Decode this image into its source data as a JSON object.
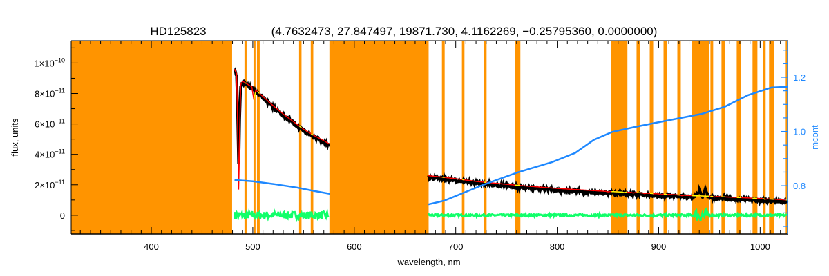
{
  "chart_data": {
    "type": "line",
    "title": {
      "star": "HD125823",
      "params": "(4.7632473, 27.847497, 19871.730, 4.1162269, −0.25795360, 0.0000000)"
    },
    "xlabel": "wavelength, nm",
    "ylabel": "flux, units",
    "y2label": "mcont",
    "xlim": [
      321,
      1027
    ],
    "ylim": [
      -1.23e-11,
      1.147e-10
    ],
    "y2lim": [
      0.622,
      1.335
    ],
    "xticks": [
      400,
      500,
      600,
      700,
      800,
      900,
      1000
    ],
    "yticks": [
      {
        "value": 0,
        "mantissa": "0",
        "exp": ""
      },
      {
        "value": 2e-11,
        "mantissa": "2×10",
        "exp": "−11"
      },
      {
        "value": 4e-11,
        "mantissa": "4×10",
        "exp": "−11"
      },
      {
        "value": 6e-11,
        "mantissa": "6×10",
        "exp": "−11"
      },
      {
        "value": 8e-11,
        "mantissa": "8×10",
        "exp": "−11"
      },
      {
        "value": 1e-10,
        "mantissa": "1×10",
        "exp": "−10"
      }
    ],
    "y2ticks": [
      0.8,
      1.0,
      1.2
    ],
    "colors": {
      "mask": "#ff9400",
      "observed": "#000000",
      "model": "#ff0000",
      "masked_model": "#ffff00",
      "residual": "#11ff6a",
      "mcont": "#1e88ff"
    },
    "masked_regions_nm": [
      [
        321,
        479.6
      ],
      [
        491.8,
        493.9
      ],
      [
        500.7,
        502.7
      ],
      [
        504.1,
        506.8
      ],
      [
        545.6,
        548.0
      ],
      [
        557.1,
        559.6
      ],
      [
        575.5,
        673.3
      ],
      [
        686.4,
        689.1
      ],
      [
        706.1,
        708.6
      ],
      [
        727.9,
        730.4
      ],
      [
        758.5,
        763.7
      ],
      [
        853.1,
        869.2
      ],
      [
        878.2,
        881.6
      ],
      [
        891.2,
        894.6
      ],
      [
        904.8,
        908.2
      ],
      [
        918.4,
        921.8
      ],
      [
        932.7,
        949.7
      ],
      [
        951.0,
        953.7
      ],
      [
        961.9,
        965.3
      ],
      [
        976.9,
        981.0
      ],
      [
        992.5,
        997.3
      ],
      [
        1002.7,
        1005.4
      ],
      [
        1008.8,
        1013.6
      ],
      [
        1025.2,
        1027
      ]
    ],
    "series": [
      {
        "name": "observed flux",
        "axis": "left",
        "segments": [
          [
            [
              482,
              9.6e-11
            ],
            [
              484,
              9.3e-11
            ],
            [
              485.3,
              6.2e-11
            ],
            [
              486.1,
              3e-11
            ],
            [
              486.9,
              6.2e-11
            ],
            [
              488,
              8.6e-11
            ],
            [
              490,
              8.8e-11
            ],
            [
              500,
              8.4e-11
            ],
            [
              510,
              7.8e-11
            ],
            [
              520,
              7.2e-11
            ],
            [
              530,
              6.65e-11
            ],
            [
              540,
              6.15e-11
            ],
            [
              550,
              5.65e-11
            ],
            [
              560,
              5.25e-11
            ],
            [
              570,
              4.9e-11
            ],
            [
              575,
              4.7e-11
            ]
          ],
          [
            [
              673,
              2.6e-11
            ],
            [
              700,
              2.4e-11
            ],
            [
              720,
              2.22e-11
            ],
            [
              760,
              1.97e-11
            ],
            [
              800,
              1.76e-11
            ],
            [
              850,
              1.56e-11
            ],
            [
              880,
              1.48e-11
            ],
            [
              900,
              1.4e-11
            ],
            [
              935,
              1.28e-11
            ],
            [
              940,
              1.7e-11
            ],
            [
              943,
              1.3e-11
            ],
            [
              946,
              1.9e-11
            ],
            [
              949,
              1.25e-11
            ],
            [
              980,
              1.16e-11
            ],
            [
              1000,
              1.1e-11
            ],
            [
              1027,
              1e-11
            ]
          ]
        ]
      },
      {
        "name": "model",
        "axis": "left",
        "absorption_lines_nm": [
          [
            486.1,
            6e-11
          ],
          [
            501,
            2.5e-11
          ],
          [
            656.3,
            0
          ],
          [
            850,
            1e-12
          ],
          [
            866,
            1e-12
          ],
          [
            875,
            1.2e-12
          ],
          [
            886,
            1.3e-12
          ],
          [
            902,
            1.5e-12
          ],
          [
            923,
            1.3e-12
          ],
          [
            955,
            1.2e-12
          ],
          [
            1005,
            1.2e-12
          ]
        ]
      },
      {
        "name": "mcont",
        "axis": "right",
        "segments": [
          [
            [
              482,
              0.821
            ],
            [
              500,
              0.816
            ],
            [
              520.7,
              0.806
            ],
            [
              543.5,
              0.793
            ],
            [
              560,
              0.781
            ],
            [
              576,
              0.77
            ]
          ],
          [
            [
              673,
              0.731
            ],
            [
              689,
              0.745
            ],
            [
              727,
              0.803
            ],
            [
              761,
              0.849
            ],
            [
              795,
              0.887
            ],
            [
              817.7,
              0.921
            ],
            [
              836,
              0.969
            ],
            [
              854,
              0.998
            ],
            [
              877,
              1.017
            ],
            [
              897,
              1.032
            ],
            [
              942.6,
              1.065
            ],
            [
              965,
              1.091
            ],
            [
              988,
              1.134
            ],
            [
              1011,
              1.162
            ],
            [
              1027,
              1.165
            ]
          ]
        ]
      },
      {
        "name": "residual",
        "axis": "left",
        "level": 0,
        "noise": [
          3e-13,
          2.5e-12
        ]
      }
    ]
  }
}
